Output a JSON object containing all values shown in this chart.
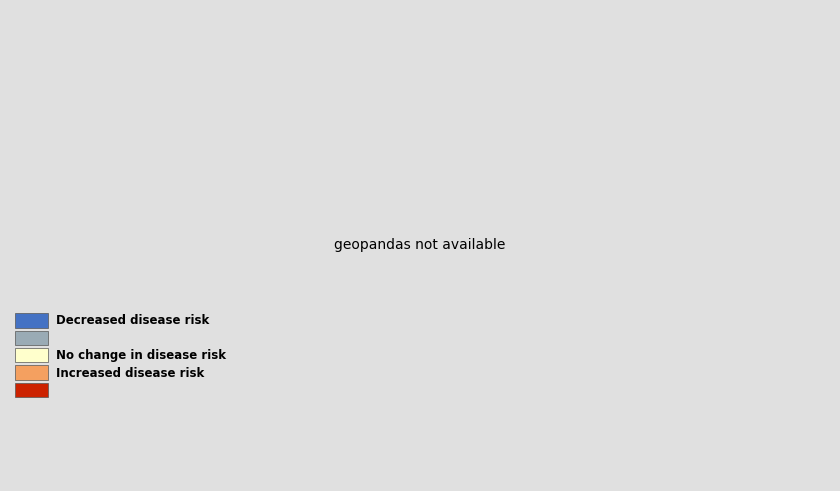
{
  "background_color": "#e0e0e0",
  "ocean_color": "#e0e0e0",
  "land_base_color": "#9aabb5",
  "colors": {
    "decreased": "#4472c4",
    "no_change": "#ffffcc",
    "increased": "#f4a060",
    "high_increase": "#cc2200"
  },
  "legend_colors": {
    "blue": "#4472c4",
    "gray": "#9aabb5",
    "yellow": "#ffffcc",
    "orange": "#f4a060",
    "red": "#cc2200"
  },
  "legend_labels": {
    "blue": "Decreased disease risk",
    "gray": "",
    "yellow": "No change in disease risk",
    "orange": "Increased disease risk",
    "red": ""
  },
  "figsize": [
    8.4,
    4.91
  ],
  "dpi": 100
}
